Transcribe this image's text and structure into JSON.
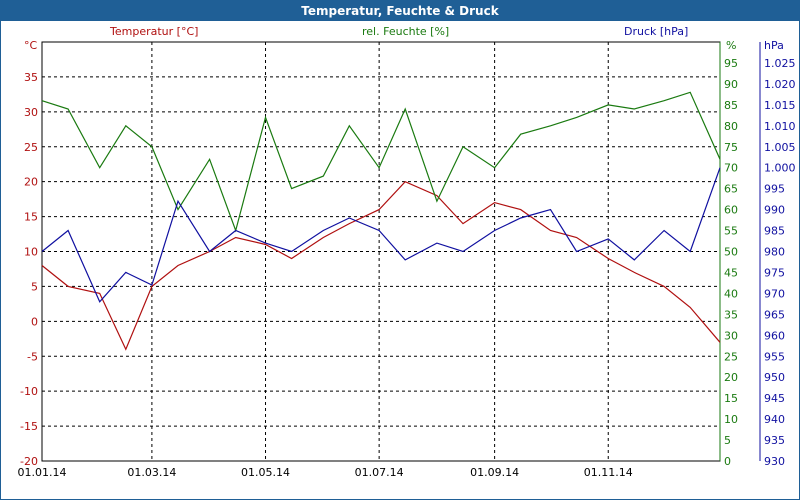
{
  "window": {
    "title": "Temperatur, Feuchte & Druck"
  },
  "colors": {
    "temperature": "#b01010",
    "humidity": "#1a7a10",
    "pressure": "#1010a0",
    "grid": "#000000",
    "titlebar": "#1f5f96"
  },
  "axes": {
    "temp_title": "Temperatur [°C]",
    "hum_title": "rel. Feuchte [%]",
    "press_title": "Druck [hPa]",
    "temp_unit": "°C",
    "hum_unit": "%",
    "press_unit": "hPa"
  },
  "chart_data": {
    "type": "line",
    "title": "Temperatur, Feuchte & Druck",
    "grid": true,
    "x_ticks": [
      "01.01.14",
      "01.03.14",
      "01.05.14",
      "01.07.14",
      "01.09.14",
      "01.11.14"
    ],
    "y_axes": {
      "temperature": {
        "label": "Temperatur [°C]",
        "range": [
          -20,
          40
        ],
        "ticks": [
          "-20",
          "-15",
          "-10",
          "-5",
          "0",
          "5",
          "10",
          "15",
          "20",
          "25",
          "30",
          "35"
        ]
      },
      "humidity": {
        "label": "rel. Feuchte [%]",
        "range": [
          0,
          100
        ],
        "ticks": [
          "0",
          "5",
          "10",
          "15",
          "20",
          "25",
          "30",
          "35",
          "40",
          "45",
          "50",
          "55",
          "60",
          "65",
          "70",
          "75",
          "80",
          "85",
          "90",
          "95"
        ]
      },
      "pressure": {
        "label": "Druck [hPa]",
        "range": [
          930,
          1030
        ],
        "ticks": [
          "930",
          "935",
          "940",
          "945",
          "950",
          "955",
          "960",
          "965",
          "970",
          "975",
          "980",
          "985",
          "990",
          "995",
          "1.000",
          "1.005",
          "1.010",
          "1.015",
          "1.020",
          "1.025"
        ]
      }
    },
    "series": [
      {
        "name": "Temperatur [°C]",
        "axis": "temperature",
        "color": "#b01010",
        "x": [
          "01.01.14",
          "15.01.14",
          "01.02.14",
          "15.02.14",
          "01.03.14",
          "15.03.14",
          "01.04.14",
          "15.04.14",
          "01.05.14",
          "15.05.14",
          "01.06.14",
          "15.06.14",
          "01.07.14",
          "15.07.14",
          "01.08.14",
          "15.08.14",
          "01.09.14",
          "15.09.14",
          "01.10.14",
          "15.10.14",
          "01.11.14",
          "15.11.14",
          "01.12.14",
          "15.12.14",
          "31.12.14"
        ],
        "values": [
          8,
          5,
          4,
          -4,
          5,
          8,
          10,
          12,
          11,
          9,
          12,
          14,
          16,
          20,
          18,
          14,
          17,
          16,
          13,
          12,
          9,
          7,
          5,
          2,
          -3
        ]
      },
      {
        "name": "rel. Feuchte [%]",
        "axis": "humidity",
        "color": "#1a7a10",
        "x": [
          "01.01.14",
          "15.01.14",
          "01.02.14",
          "15.02.14",
          "01.03.14",
          "15.03.14",
          "01.04.14",
          "15.04.14",
          "01.05.14",
          "15.05.14",
          "01.06.14",
          "15.06.14",
          "01.07.14",
          "15.07.14",
          "01.08.14",
          "15.08.14",
          "01.09.14",
          "15.09.14",
          "01.10.14",
          "15.10.14",
          "01.11.14",
          "15.11.14",
          "01.12.14",
          "15.12.14",
          "31.12.14"
        ],
        "values": [
          86,
          84,
          70,
          80,
          75,
          60,
          72,
          55,
          82,
          65,
          68,
          80,
          70,
          84,
          62,
          75,
          70,
          78,
          80,
          82,
          85,
          84,
          86,
          88,
          72
        ]
      },
      {
        "name": "Druck [hPa]",
        "axis": "pressure",
        "color": "#1010a0",
        "x": [
          "01.01.14",
          "15.01.14",
          "01.02.14",
          "15.02.14",
          "01.03.14",
          "15.03.14",
          "01.04.14",
          "15.04.14",
          "01.05.14",
          "15.05.14",
          "01.06.14",
          "15.06.14",
          "01.07.14",
          "15.07.14",
          "01.08.14",
          "15.08.14",
          "01.09.14",
          "15.09.14",
          "01.10.14",
          "15.10.14",
          "01.11.14",
          "15.11.14",
          "01.12.14",
          "15.12.14",
          "31.12.14"
        ],
        "values": [
          980,
          985,
          968,
          975,
          972,
          992,
          980,
          985,
          982,
          980,
          985,
          988,
          985,
          978,
          982,
          980,
          985,
          988,
          990,
          980,
          983,
          978,
          985,
          980,
          1000
        ]
      }
    ]
  }
}
